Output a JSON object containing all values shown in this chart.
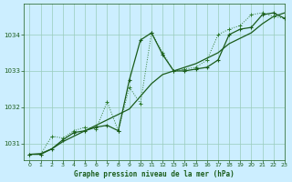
{
  "bg_color": "#cceeff",
  "grid_color": "#99ccbb",
  "line_color_dark": "#1a5c1a",
  "line_color_mid": "#2d7a2d",
  "title": "Graphe pression niveau de la mer (hPa)",
  "xlim": [
    -0.5,
    23
  ],
  "ylim": [
    1030.55,
    1034.85
  ],
  "yticks": [
    1031,
    1032,
    1033,
    1034
  ],
  "xticks": [
    0,
    1,
    2,
    3,
    4,
    5,
    6,
    7,
    8,
    9,
    10,
    11,
    12,
    13,
    14,
    15,
    16,
    17,
    18,
    19,
    20,
    21,
    22,
    23
  ],
  "series_smooth_x": [
    0,
    1,
    2,
    3,
    4,
    5,
    6,
    7,
    8,
    9,
    10,
    11,
    12,
    13,
    14,
    15,
    16,
    17,
    18,
    19,
    20,
    21,
    22,
    23
  ],
  "series_smooth_y": [
    1030.7,
    1030.72,
    1030.85,
    1031.05,
    1031.2,
    1031.35,
    1031.5,
    1031.65,
    1031.8,
    1031.95,
    1032.3,
    1032.65,
    1032.9,
    1033.0,
    1033.1,
    1033.2,
    1033.35,
    1033.5,
    1033.75,
    1033.9,
    1034.05,
    1034.3,
    1034.5,
    1034.6
  ],
  "series_peak_x": [
    0,
    1,
    2,
    3,
    4,
    5,
    6,
    7,
    8,
    9,
    10,
    11,
    12,
    13,
    14,
    15,
    16,
    17,
    18,
    19,
    20,
    21,
    22,
    23
  ],
  "series_peak_y": [
    1030.7,
    1030.7,
    1030.85,
    1031.1,
    1031.3,
    1031.35,
    1031.45,
    1031.5,
    1031.35,
    1032.75,
    1033.85,
    1034.05,
    1033.45,
    1033.0,
    1033.0,
    1033.05,
    1033.1,
    1033.3,
    1034.0,
    1034.15,
    1034.2,
    1034.55,
    1034.6,
    1034.45
  ],
  "series_jagged_x": [
    0,
    1,
    2,
    3,
    4,
    5,
    6,
    7,
    8,
    9,
    10,
    11,
    12,
    13,
    14,
    15,
    16,
    17,
    18,
    19,
    20,
    21,
    22,
    23
  ],
  "series_jagged_y": [
    1030.7,
    1030.7,
    1031.2,
    1031.15,
    1031.35,
    1031.45,
    1031.4,
    1032.15,
    1031.35,
    1032.55,
    1032.1,
    1034.05,
    1033.5,
    1033.0,
    1033.05,
    1033.1,
    1033.3,
    1034.0,
    1034.15,
    1034.25,
    1034.55,
    1034.6,
    1034.5,
    1034.45
  ]
}
